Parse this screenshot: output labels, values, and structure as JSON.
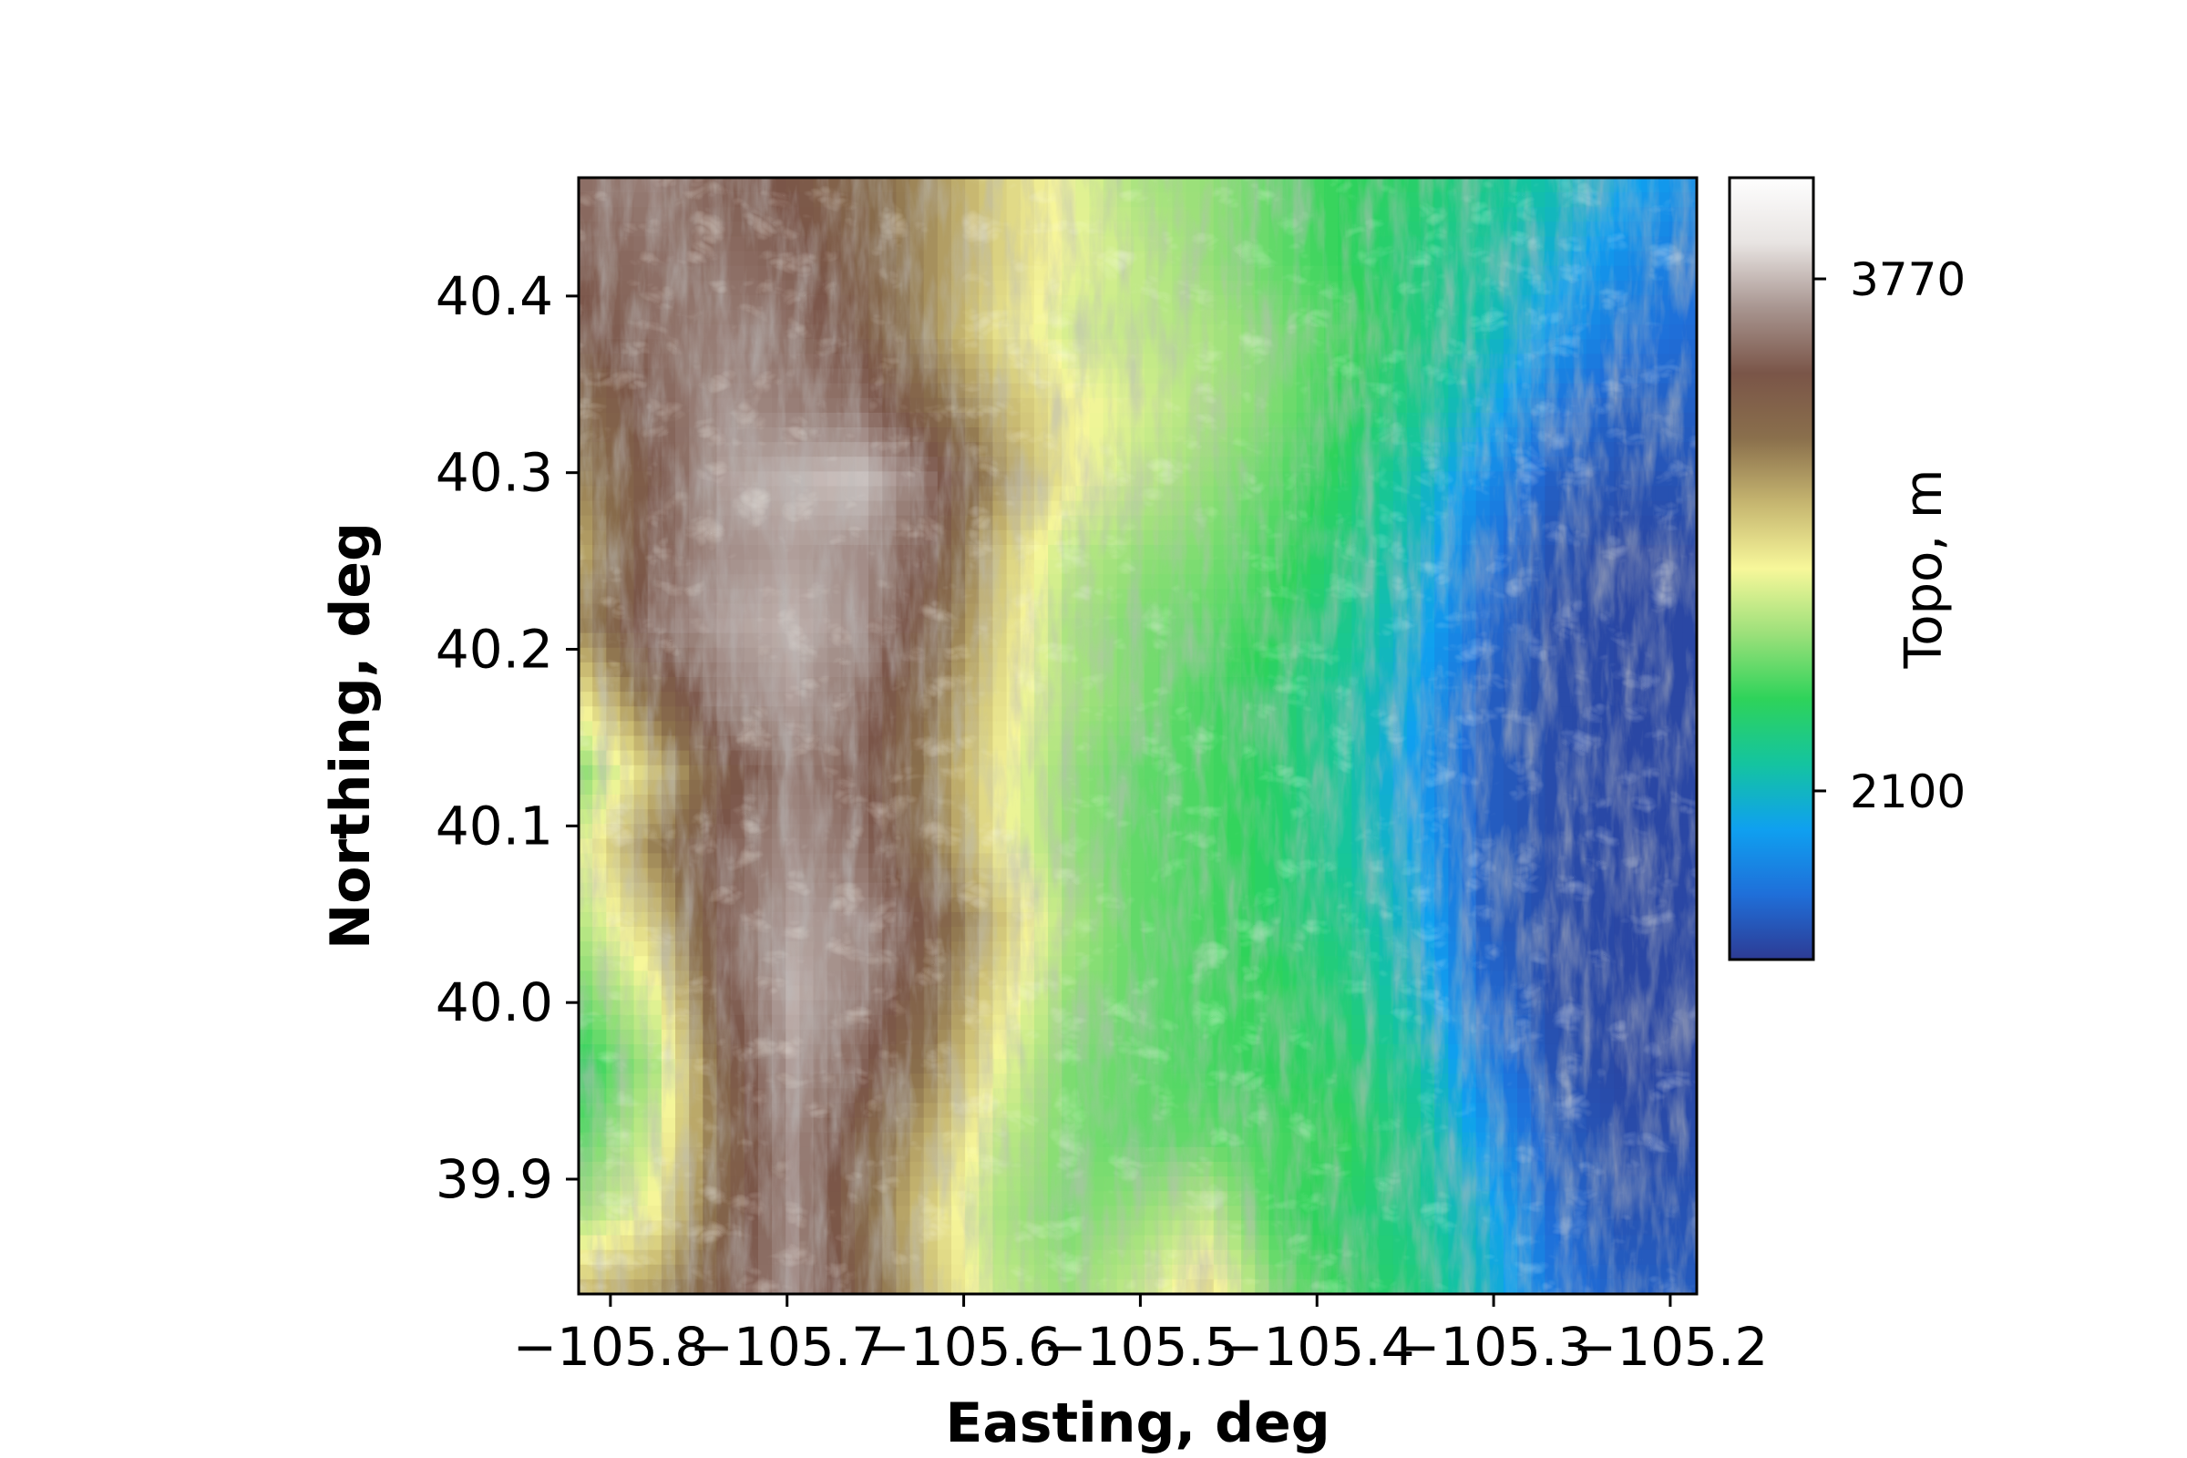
{
  "chart_data": {
    "type": "heatmap",
    "title": "",
    "xlabel": "Easting, deg",
    "ylabel": "Northing, deg",
    "xlim": [
      -105.818,
      -105.185
    ],
    "ylim": [
      39.835,
      40.467
    ],
    "x_ticks": [
      -105.8,
      -105.7,
      -105.6,
      -105.5,
      -105.4,
      -105.3,
      -105.2
    ],
    "x_tick_labels": [
      "−105.8",
      "−105.7",
      "−105.6",
      "−105.5",
      "−105.4",
      "−105.3",
      "−105.2"
    ],
    "y_ticks": [
      39.9,
      40.0,
      40.1,
      40.2,
      40.3,
      40.4
    ],
    "y_tick_labels": [
      "39.9",
      "40.0",
      "40.1",
      "40.2",
      "40.3",
      "40.4"
    ],
    "grid": false,
    "colormap": "terrain",
    "hillshade": true,
    "colorbar": {
      "label": "Topo, m",
      "range": [
        1550,
        4100
      ],
      "ticks": [
        2100,
        3770
      ],
      "tick_labels": [
        "2100",
        "3770"
      ],
      "colors": [
        "#2d3b94",
        "#1f6fd9",
        "#0fa0f0",
        "#14c4a0",
        "#2ed35a",
        "#9ce07a",
        "#f7f79a",
        "#c6b670",
        "#8a6f4c",
        "#7a5548",
        "#a89590",
        "#e8e4e2",
        "#fefefe"
      ]
    },
    "elevation_grid_note_free": true,
    "elevation_grid": [
      [
        3550,
        3600,
        3500,
        3450,
        3300,
        3150,
        2950,
        2800,
        2650,
        2600,
        2500,
        2400,
        2350,
        2250,
        2150,
        2000,
        1900
      ],
      [
        3500,
        3550,
        3550,
        3500,
        3350,
        3150,
        2950,
        2800,
        2700,
        2600,
        2500,
        2400,
        2300,
        2200,
        2050,
        1900,
        1800
      ],
      [
        3450,
        3550,
        3600,
        3550,
        3400,
        3150,
        2900,
        2750,
        2700,
        2650,
        2550,
        2450,
        2300,
        2150,
        1950,
        1800,
        1750
      ],
      [
        3300,
        3500,
        3650,
        3600,
        3550,
        3300,
        3050,
        2850,
        2750,
        2650,
        2550,
        2400,
        2250,
        2050,
        1800,
        1700,
        1700
      ],
      [
        3200,
        3450,
        3700,
        3750,
        3800,
        3550,
        3150,
        2850,
        2700,
        2600,
        2500,
        2350,
        2150,
        1900,
        1700,
        1650,
        1650
      ],
      [
        3100,
        3500,
        3650,
        3700,
        3650,
        3450,
        3000,
        2700,
        2600,
        2550,
        2450,
        2300,
        2100,
        1800,
        1650,
        1600,
        1600
      ],
      [
        3200,
        3550,
        3700,
        3750,
        3650,
        3350,
        2950,
        2650,
        2550,
        2500,
        2400,
        2250,
        2050,
        1750,
        1620,
        1600,
        1600
      ],
      [
        2900,
        3300,
        3600,
        3700,
        3550,
        3250,
        2900,
        2650,
        2550,
        2450,
        2350,
        2200,
        2000,
        1700,
        1620,
        1600,
        1600
      ],
      [
        2600,
        3000,
        3400,
        3600,
        3500,
        3200,
        2850,
        2600,
        2500,
        2450,
        2350,
        2200,
        1950,
        1700,
        1620,
        1600,
        1600
      ],
      [
        2800,
        3200,
        3500,
        3650,
        3550,
        3250,
        2850,
        2600,
        2500,
        2450,
        2350,
        2200,
        2000,
        1700,
        1620,
        1600,
        1600
      ],
      [
        2700,
        3000,
        3500,
        3700,
        3650,
        3400,
        3000,
        2650,
        2500,
        2450,
        2350,
        2250,
        2050,
        1700,
        1620,
        1600,
        1600
      ],
      [
        2550,
        2800,
        3450,
        3750,
        3600,
        3300,
        2900,
        2600,
        2500,
        2450,
        2400,
        2300,
        2100,
        1750,
        1620,
        1600,
        1600
      ],
      [
        2400,
        2650,
        3350,
        3700,
        3500,
        3200,
        2800,
        2550,
        2500,
        2450,
        2400,
        2350,
        2200,
        1850,
        1650,
        1600,
        1600
      ],
      [
        2500,
        2750,
        3300,
        3650,
        3350,
        3050,
        2700,
        2550,
        2500,
        2500,
        2450,
        2400,
        2250,
        1950,
        1700,
        1620,
        1620
      ],
      [
        2650,
        2850,
        3350,
        3650,
        3300,
        2950,
        2650,
        2550,
        2600,
        2700,
        2450,
        2350,
        2250,
        2050,
        1750,
        1650,
        1650
      ],
      [
        3000,
        3100,
        3400,
        3650,
        3350,
        3000,
        2700,
        2600,
        2700,
        2900,
        2550,
        2400,
        2300,
        2100,
        1800,
        1700,
        1680
      ]
    ]
  }
}
